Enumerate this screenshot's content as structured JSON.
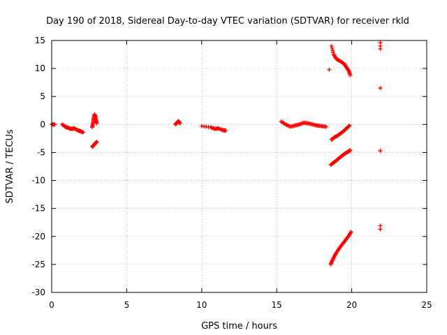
{
  "chart_data": {
    "type": "scatter",
    "title": "Day 190 of 2018, Sidereal Day-to-day VTEC variation (SDTVAR) for receiver rkld",
    "xlabel": "GPS time / hours",
    "ylabel": "SDTVAR / TECUs",
    "xlim": [
      0,
      25
    ],
    "ylim": [
      -30,
      15
    ],
    "xticks": [
      0,
      5,
      10,
      15,
      20,
      25
    ],
    "yticks": [
      15,
      10,
      5,
      0,
      -5,
      -10,
      -15,
      -20,
      -25,
      -30
    ],
    "grid": true,
    "marker": "+",
    "color": "#ff0000",
    "segments": [
      {
        "name": "t0-near-zero",
        "x": [
          0.0,
          0.2
        ],
        "y": [
          0.0,
          0.0
        ]
      },
      {
        "name": "morning-cluster",
        "x": [
          0.7,
          0.9,
          1.1,
          1.3,
          1.5,
          1.7,
          1.9,
          2.1
        ],
        "y": [
          0.0,
          -0.4,
          -0.6,
          -0.8,
          -0.7,
          -1.0,
          -1.2,
          -1.4
        ]
      },
      {
        "name": "short-pass-a-upper",
        "x": [
          2.7,
          2.75,
          2.8,
          2.85,
          2.9,
          2.95,
          3.0
        ],
        "y": [
          -0.5,
          0.2,
          1.0,
          1.8,
          1.5,
          0.8,
          0.2
        ]
      },
      {
        "name": "short-pass-a-lower",
        "x": [
          2.7,
          2.8,
          2.9,
          3.0
        ],
        "y": [
          -4.0,
          -3.7,
          -3.4,
          -3.1
        ]
      },
      {
        "name": "pass-8h",
        "x": [
          8.25,
          8.35,
          8.45,
          8.55
        ],
        "y": [
          0.0,
          0.3,
          0.6,
          0.2
        ]
      },
      {
        "name": "pass-10h",
        "x": [
          10.0,
          10.6,
          10.9,
          11.1,
          11.4,
          11.6
        ],
        "y": [
          -0.3,
          -0.5,
          -0.8,
          -0.7,
          -1.0,
          -1.1
        ]
      },
      {
        "name": "afternoon-band",
        "x": [
          15.3,
          15.6,
          15.9,
          16.2,
          16.5,
          16.8,
          17.1,
          17.4,
          17.7,
          18.0,
          18.3
        ],
        "y": [
          0.5,
          0.0,
          -0.4,
          -0.2,
          0.0,
          0.3,
          0.2,
          0.0,
          -0.2,
          -0.3,
          -0.4
        ]
      },
      {
        "name": "rising-upper-arc",
        "x": [
          18.65,
          18.8,
          18.95,
          19.1,
          19.3,
          19.5,
          19.65,
          19.8,
          19.9
        ],
        "y": [
          14.0,
          12.5,
          11.8,
          11.5,
          11.2,
          10.8,
          10.2,
          9.6,
          8.8
        ]
      },
      {
        "name": "isolated-9.8",
        "x": [
          18.5
        ],
        "y": [
          9.8
        ]
      },
      {
        "name": "near-zero-arc",
        "x": [
          18.65,
          18.85,
          19.05,
          19.25,
          19.45,
          19.65,
          19.85
        ],
        "y": [
          -2.7,
          -2.3,
          -2.0,
          -1.6,
          -1.2,
          -0.7,
          -0.2
        ]
      },
      {
        "name": "minus-five-arc",
        "x": [
          18.6,
          18.8,
          19.0,
          19.2,
          19.4,
          19.6,
          19.8,
          19.9
        ],
        "y": [
          -7.2,
          -6.8,
          -6.4,
          -5.9,
          -5.5,
          -5.1,
          -4.8,
          -4.6
        ]
      },
      {
        "name": "lower-arc",
        "x": [
          18.6,
          18.7,
          18.85,
          19.0,
          19.2,
          19.4,
          19.6,
          19.8,
          19.95
        ],
        "y": [
          -25.0,
          -24.3,
          -23.5,
          -22.8,
          -22.0,
          -21.3,
          -20.6,
          -19.9,
          -19.2
        ]
      },
      {
        "name": "late-points",
        "x": [
          21.9,
          21.9,
          21.9,
          21.9,
          21.9,
          21.9,
          21.9
        ],
        "y": [
          14.6,
          14.0,
          13.5,
          6.5,
          -4.7,
          -18.1,
          -18.7
        ]
      }
    ]
  }
}
